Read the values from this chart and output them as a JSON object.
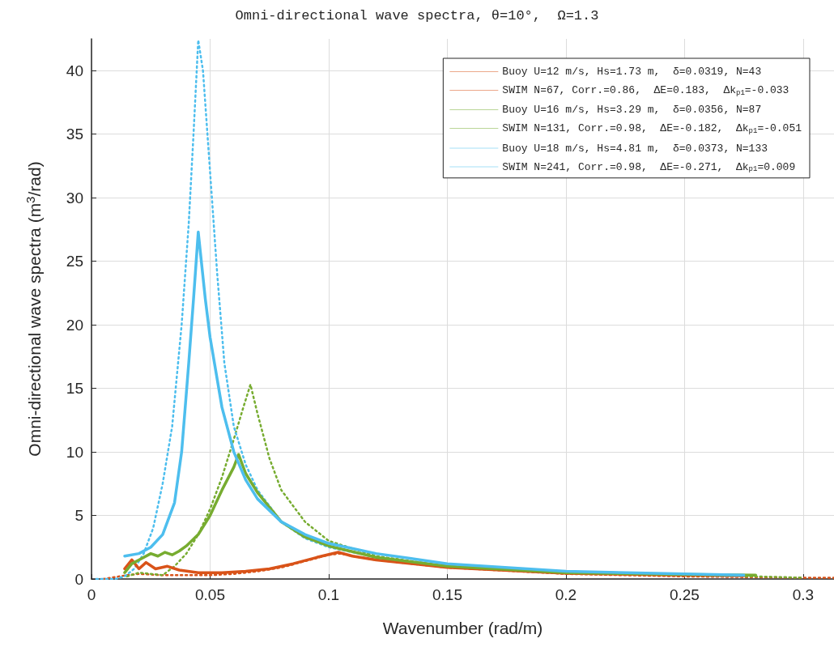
{
  "chart_data": {
    "type": "line",
    "title": "Omni-directional wave spectra, θ=10°,  Ω=1.3",
    "xlabel": "Wavenumber (rad/m)",
    "ylabel": "Omni-directional wave spectra (m$^{3}$/rad)",
    "xlim": [
      0,
      0.313
    ],
    "xticks": [
      0,
      0.05,
      0.1,
      0.15,
      0.2,
      0.25,
      0.3
    ],
    "ylim": [
      0,
      42.5
    ],
    "yticks": [
      0,
      5,
      10,
      15,
      20,
      25,
      30,
      35,
      40
    ],
    "grid": true,
    "legend": "top right",
    "marker": "none",
    "series": [
      {
        "name": "Buoy U=12 m/s, Hs=1.73 m,  δ=0.0319, N=43",
        "color": "#d95319",
        "line_style": "dotted",
        "x": [
          0.005,
          0.015,
          0.02,
          0.03,
          0.04,
          0.05,
          0.06,
          0.07,
          0.08,
          0.09,
          0.1,
          0.105,
          0.11,
          0.12,
          0.15,
          0.2,
          0.25,
          0.3,
          0.313
        ],
        "values": [
          0,
          0.3,
          0.4,
          0.3,
          0.3,
          0.3,
          0.4,
          0.6,
          0.9,
          1.4,
          1.9,
          2.0,
          1.8,
          1.5,
          0.9,
          0.4,
          0.2,
          0.1,
          0.1
        ]
      },
      {
        "name": "SWIM N=67, Corr.=0.86,  ΔE=0.183,  Δk$_{p1}$=-0.033",
        "color": "#d95319",
        "line_style": "solid",
        "x": [
          0.014,
          0.017,
          0.02,
          0.023,
          0.027,
          0.032,
          0.037,
          0.045,
          0.055,
          0.065,
          0.075,
          0.085,
          0.095,
          0.104,
          0.11,
          0.12,
          0.15,
          0.2,
          0.25,
          0.275
        ],
        "values": [
          0.8,
          1.5,
          0.8,
          1.3,
          0.8,
          1.0,
          0.7,
          0.5,
          0.5,
          0.6,
          0.8,
          1.2,
          1.7,
          2.1,
          1.8,
          1.5,
          0.9,
          0.45,
          0.3,
          0.25
        ]
      },
      {
        "name": "Buoy U=16 m/s, Hs=3.29 m,  δ=0.0356, N=87",
        "color": "#77ac30",
        "line_style": "dotted",
        "x": [
          0.015,
          0.02,
          0.03,
          0.035,
          0.04,
          0.045,
          0.05,
          0.055,
          0.06,
          0.064,
          0.067,
          0.07,
          0.075,
          0.08,
          0.09,
          0.1,
          0.12,
          0.15,
          0.2,
          0.25,
          0.28,
          0.3
        ],
        "values": [
          0.2,
          0.5,
          0.3,
          1.0,
          2.0,
          3.5,
          5.5,
          8.0,
          11.0,
          13.5,
          15.3,
          13.0,
          9.5,
          7.0,
          4.5,
          3.0,
          1.8,
          1.0,
          0.5,
          0.3,
          0.2,
          0.1
        ]
      },
      {
        "name": "SWIM N=131, Corr.=0.98,  ΔE=-0.182,  Δk$_{p1}$=-0.051",
        "color": "#77ac30",
        "line_style": "solid",
        "x": [
          0.014,
          0.017,
          0.02,
          0.025,
          0.028,
          0.031,
          0.034,
          0.037,
          0.04,
          0.045,
          0.05,
          0.055,
          0.06,
          0.062,
          0.065,
          0.07,
          0.08,
          0.09,
          0.1,
          0.12,
          0.15,
          0.2,
          0.25,
          0.28
        ],
        "values": [
          0.5,
          1.2,
          1.5,
          2.0,
          1.8,
          2.1,
          1.9,
          2.2,
          2.6,
          3.5,
          5.0,
          7.0,
          8.8,
          9.8,
          8.3,
          6.8,
          4.5,
          3.3,
          2.6,
          1.7,
          1.0,
          0.5,
          0.35,
          0.3
        ]
      },
      {
        "name": "Buoy U=18 m/s, Hs=4.81 m,  δ=0.0373, N=133",
        "color": "#4dbeee",
        "line_style": "dotted",
        "x": [
          0.002,
          0.01,
          0.014,
          0.018,
          0.022,
          0.026,
          0.03,
          0.034,
          0.038,
          0.041,
          0.043,
          0.045,
          0.047,
          0.05,
          0.053,
          0.056,
          0.06,
          0.065,
          0.07,
          0.08,
          0.09,
          0.1,
          0.12,
          0.15,
          0.2,
          0.25,
          0.275
        ],
        "values": [
          0,
          0,
          0.2,
          0.8,
          2.0,
          4.0,
          7.5,
          12.0,
          20.0,
          28.0,
          35.0,
          42.4,
          40.0,
          32.0,
          24.0,
          17.0,
          12.0,
          9.0,
          7.0,
          4.5,
          3.2,
          2.5,
          1.7,
          1.0,
          0.5,
          0.3,
          0.2
        ]
      },
      {
        "name": "SWIM N=241, Corr.=0.98,  ΔE=-0.271,  Δk$_{p1}$=0.009",
        "color": "#4dbeee",
        "line_style": "solid",
        "x": [
          0.014,
          0.02,
          0.025,
          0.03,
          0.035,
          0.038,
          0.041,
          0.043,
          0.045,
          0.048,
          0.05,
          0.055,
          0.06,
          0.065,
          0.07,
          0.08,
          0.09,
          0.1,
          0.12,
          0.15,
          0.2,
          0.25,
          0.275
        ],
        "values": [
          1.8,
          2.0,
          2.5,
          3.5,
          6.0,
          10.0,
          17.0,
          22.0,
          27.3,
          22.0,
          19.0,
          13.5,
          10.0,
          7.8,
          6.3,
          4.5,
          3.5,
          2.8,
          2.0,
          1.2,
          0.6,
          0.4,
          0.3
        ]
      }
    ]
  }
}
